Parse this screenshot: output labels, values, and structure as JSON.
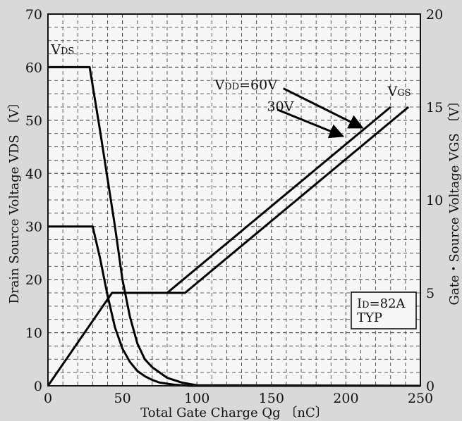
{
  "chart_data": {
    "type": "line",
    "xlabel": "Total Gate Charge   Qg 〔nC〕",
    "ylabel_left": "Drain Source Voltage   VDS 〔V〕",
    "ylabel_right": "Gate・Source Voltage   VGS 〔V〕",
    "xlim": [
      0,
      250
    ],
    "ylim_left": [
      0,
      70
    ],
    "ylim_right": [
      0,
      20
    ],
    "x_ticks": [
      "0",
      "50",
      "100",
      "150",
      "200",
      "250"
    ],
    "y_left_ticks": [
      "0",
      "10",
      "20",
      "30",
      "40",
      "50",
      "60",
      "70"
    ],
    "y_right_ticks": [
      "0",
      "5",
      "10",
      "15",
      "20"
    ],
    "grid": true,
    "series": [
      {
        "name": "VDS (VDD=60V)",
        "axis": "left",
        "x": [
          0,
          28,
          35,
          45,
          50,
          55,
          60,
          65,
          70,
          75,
          80,
          90,
          100,
          250
        ],
        "y": [
          60,
          60,
          48,
          30,
          20,
          13,
          8,
          5,
          3.5,
          2.5,
          1.5,
          0.6,
          0.1,
          0
        ]
      },
      {
        "name": "VDS (VDD=30V)",
        "axis": "left",
        "x": [
          0,
          30,
          35,
          40,
          45,
          50,
          55,
          60,
          65,
          70,
          75,
          85,
          95,
          250
        ],
        "y": [
          30,
          30,
          24,
          17,
          11,
          7,
          4.5,
          2.8,
          1.8,
          1.1,
          0.6,
          0.2,
          0,
          0
        ]
      },
      {
        "name": "VGS (VDD=30V)",
        "axis": "right",
        "x": [
          0,
          43,
          80,
          230
        ],
        "y": [
          0,
          5,
          5,
          15
        ]
      },
      {
        "name": "VGS (VDD=60V)",
        "axis": "right",
        "x": [
          43,
          92,
          242
        ],
        "y": [
          5,
          5,
          15
        ]
      }
    ],
    "annotations": [
      {
        "main": "V",
        "sub": "DS",
        "x": 2,
        "y": 62.5,
        "axis": "left"
      },
      {
        "main": "V",
        "sub": "GS",
        "x": 228,
        "y": 15.6,
        "axis": "right"
      },
      {
        "main": "V",
        "sub": "DD",
        "suffix": "=60V",
        "x": 112,
        "y": 55.8,
        "axis": "left"
      },
      {
        "main": "30V",
        "x": 147,
        "y": 51.8,
        "axis": "left"
      }
    ],
    "arrows": [
      {
        "from_x": 158,
        "from_y": 56,
        "to_x": 211,
        "to_y": 48.6
      },
      {
        "from_x": 154,
        "from_y": 52,
        "to_x": 198,
        "to_y": 47
      }
    ],
    "note": {
      "line1_main": "I",
      "line1_sub": "D",
      "line1_suffix": "=82A",
      "line2": "TYP"
    }
  }
}
